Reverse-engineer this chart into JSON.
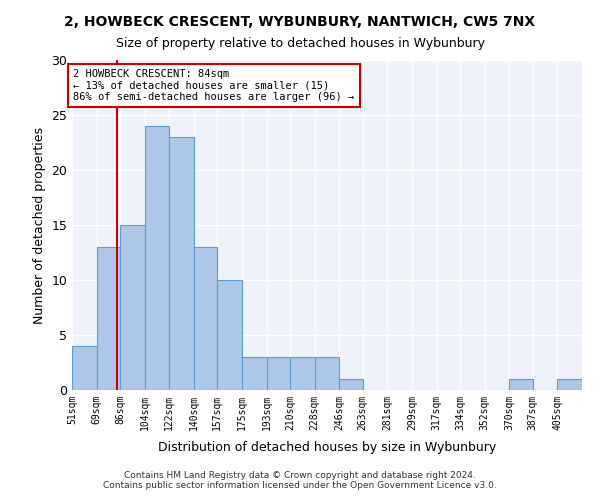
{
  "title": "2, HOWBECK CRESCENT, WYBUNBURY, NANTWICH, CW5 7NX",
  "subtitle": "Size of property relative to detached houses in Wybunbury",
  "xlabel": "Distribution of detached houses by size in Wybunbury",
  "ylabel": "Number of detached properties",
  "bar_edges": [
    51,
    69,
    86,
    104,
    122,
    140,
    157,
    175,
    193,
    210,
    228,
    246,
    263,
    281,
    299,
    317,
    334,
    352,
    370,
    387,
    405,
    423
  ],
  "bar_heights": [
    4,
    13,
    15,
    24,
    23,
    13,
    10,
    3,
    3,
    3,
    3,
    1,
    0,
    0,
    0,
    0,
    0,
    0,
    1,
    0,
    1
  ],
  "bar_color": "#aec6e8",
  "bar_edge_color": "#5a9fd4",
  "property_line_x": 84,
  "annotation_text": "2 HOWBECK CRESCENT: 84sqm\n← 13% of detached houses are smaller (15)\n86% of semi-detached houses are larger (96) →",
  "annotation_box_color": "#ffffff",
  "annotation_border_color": "#cc0000",
  "vline_color": "#cc0000",
  "ylim": [
    0,
    30
  ],
  "footer_line1": "Contains HM Land Registry data © Crown copyright and database right 2024.",
  "footer_line2": "Contains public sector information licensed under the Open Government Licence v3.0.",
  "background_color": "#eef2fb",
  "tick_labels": [
    "51sqm",
    "69sqm",
    "86sqm",
    "104sqm",
    "122sqm",
    "140sqm",
    "157sqm",
    "175sqm",
    "193sqm",
    "210sqm",
    "228sqm",
    "246sqm",
    "263sqm",
    "281sqm",
    "299sqm",
    "317sqm",
    "334sqm",
    "352sqm",
    "370sqm",
    "387sqm",
    "405sqm"
  ]
}
